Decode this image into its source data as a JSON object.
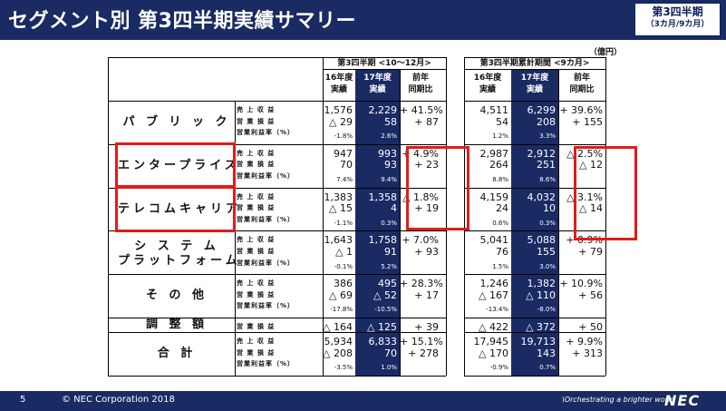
{
  "header": {
    "title": "セグメント別 第3四半期実績サマリー",
    "badge_line1": "第3四半期",
    "badge_line2": "（3カ月/9カ月）"
  },
  "unit": "（億円）",
  "groups": [
    {
      "label": "第3四半期 <10〜12月>",
      "cols": [
        "16年度\n実績",
        "17年度\n実績",
        "前年\n同期比"
      ]
    },
    {
      "label": "第3四半期累計期間 <9カ月>",
      "cols": [
        "16年度\n実績",
        "17年度\n実績",
        "前年\n同期比"
      ]
    }
  ],
  "metric_labels": {
    "rev": "売 上 収 益",
    "op": "営 業 損 益",
    "margin": "営業利益率（%）"
  },
  "segments": [
    {
      "name": "パ ブ リ ッ ク",
      "rows": [
        [
          "1,576",
          "2,229",
          "+ 41.5%",
          "4,511",
          "6,299",
          "+ 39.6%"
        ],
        [
          "△ 29",
          "58",
          "+ 87",
          "54",
          "208",
          "+ 155"
        ],
        [
          "-1.8%",
          "2.6%",
          "",
          "1.2%",
          "3.3%",
          ""
        ]
      ]
    },
    {
      "name": "エンタープライズ",
      "rows": [
        [
          "947",
          "993",
          "+ 4.9%",
          "2,987",
          "2,912",
          "△ 2.5%"
        ],
        [
          "70",
          "93",
          "+ 23",
          "264",
          "251",
          "△ 12"
        ],
        [
          "7.4%",
          "9.4%",
          "",
          "8.8%",
          "8.6%",
          ""
        ]
      ]
    },
    {
      "name": "テレコムキャリア",
      "rows": [
        [
          "1,383",
          "1,358",
          "△ 1.8%",
          "4,159",
          "4,032",
          "△ 3.1%"
        ],
        [
          "△ 15",
          "4",
          "+ 19",
          "24",
          "10",
          "△ 14"
        ],
        [
          "-1.1%",
          "0.3%",
          "",
          "0.6%",
          "0.3%",
          ""
        ]
      ]
    },
    {
      "name": "シ ス テ ム\nプラットフォーム",
      "rows": [
        [
          "1,643",
          "1,758",
          "+ 7.0%",
          "5,041",
          "5,088",
          "+ 0.9%"
        ],
        [
          "△ 1",
          "91",
          "+ 93",
          "76",
          "155",
          "+ 79"
        ],
        [
          "-0.1%",
          "5.2%",
          "",
          "1.5%",
          "3.0%",
          ""
        ]
      ]
    },
    {
      "name": "そ の 他",
      "rows": [
        [
          "386",
          "495",
          "+ 28.3%",
          "1,246",
          "1,382",
          "+ 10.9%"
        ],
        [
          "△ 69",
          "△ 52",
          "+ 17",
          "△ 167",
          "△ 110",
          "+ 56"
        ],
        [
          "-17.8%",
          "-10.5%",
          "",
          "-13.4%",
          "-8.0%",
          ""
        ]
      ]
    },
    {
      "name": "調 整 額",
      "rows": [
        [
          "△ 164",
          "△ 125",
          "+ 39",
          "△ 422",
          "△ 372",
          "+ 50"
        ]
      ]
    },
    {
      "name": "合 計",
      "rows": [
        [
          "5,934",
          "6,833",
          "+ 15.1%",
          "17,945",
          "19,713",
          "+ 9.9%"
        ],
        [
          "△ 208",
          "70",
          "+ 278",
          "△ 170",
          "143",
          "+ 313"
        ],
        [
          "-3.5%",
          "1.0%",
          "",
          "-0.9%",
          "0.7%",
          ""
        ]
      ]
    }
  ],
  "footer": {
    "page": "5",
    "copyright": "© NEC Corporation 2018",
    "tagline": "\\Orchestrating a brighter world",
    "logo": "NEC"
  },
  "colors": {
    "navy": "#1a2a63",
    "highlight": "#e31b1b"
  }
}
